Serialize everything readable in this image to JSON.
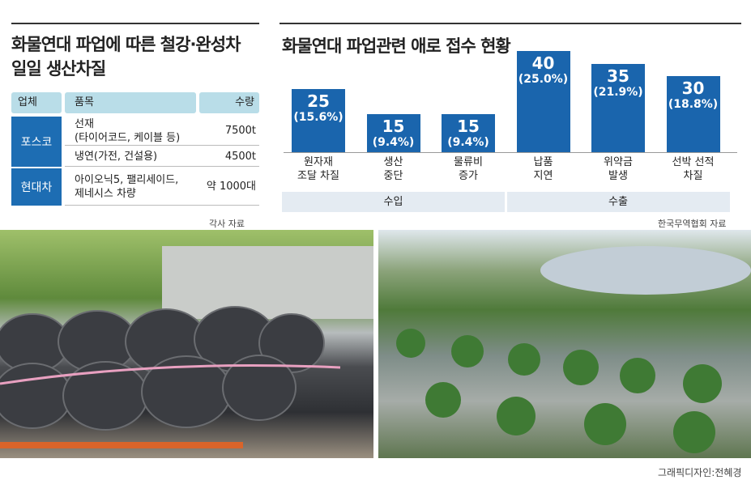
{
  "left_panel": {
    "title": "화물연대 파업에 따른 철강·완성차\n일일 생산차질",
    "table": {
      "header": [
        "업체",
        "품목",
        "수량"
      ],
      "rows": [
        {
          "company": "포스코",
          "items": [
            {
              "item": "선재\n(타이어코드, 케이블 등)",
              "qty": "7500t"
            },
            {
              "item": "냉연(가전, 건설용)",
              "qty": "4500t"
            }
          ]
        },
        {
          "company": "현대차",
          "items": [
            {
              "item": "아이오닉5, 팰리세이드,\n제네시스 차량",
              "qty": "약 1000대"
            }
          ]
        }
      ]
    },
    "source": "각사 자료"
  },
  "chart_data": {
    "type": "bar",
    "title": "화물연대 파업관련 애로 접수 현황",
    "categories": [
      "원자재\n조달 차질",
      "생산\n중단",
      "물류비\n증가",
      "납품\n지연",
      "위약금\n발생",
      "선박 선적\n차질"
    ],
    "values": [
      25,
      15,
      15,
      40,
      35,
      30
    ],
    "shares": [
      15.6,
      9.4,
      9.4,
      25.0,
      21.9,
      18.8
    ],
    "share_labels": [
      "(15.6%)",
      "(9.4%)",
      "(9.4%)",
      "(25.0%)",
      "(21.9%)",
      "(18.8%)"
    ],
    "groups": [
      "수입",
      "수출"
    ],
    "color": "#1a65ad",
    "source": "한국무역협회 자료"
  },
  "credit": "그래픽디자인:전혜경"
}
